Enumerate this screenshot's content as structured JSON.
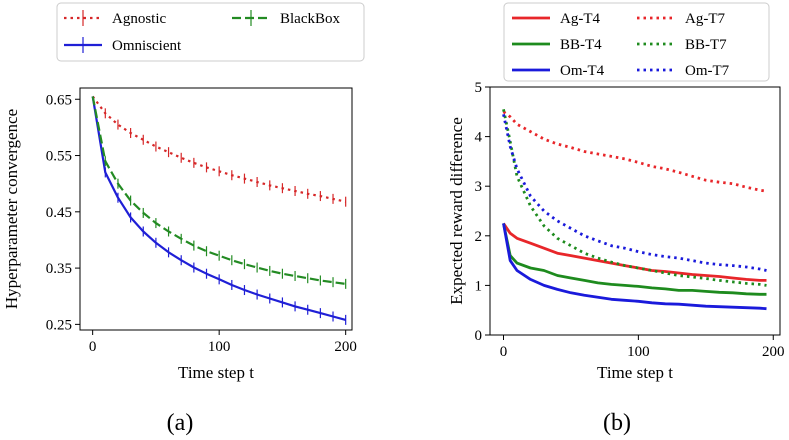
{
  "chart_data": [
    {
      "type": "line",
      "panel": "(a)",
      "xlabel": "Time step t",
      "ylabel": "Hyperparameter convergence",
      "xlim": [
        -10,
        205
      ],
      "ylim": [
        0.24,
        0.67
      ],
      "xticks": [
        0,
        100,
        200
      ],
      "yticks": [
        0.25,
        0.35,
        0.45,
        0.55,
        0.65
      ],
      "ytick_labels": [
        "0.25",
        "0.35",
        "0.45",
        "0.55",
        "0.65"
      ],
      "legend_position": "top, outside",
      "grid": false,
      "error_bars": true,
      "series": [
        {
          "name": "Agnostic",
          "color": "#d62728",
          "style": "dotted",
          "x": [
            0,
            10,
            20,
            30,
            40,
            50,
            60,
            70,
            80,
            90,
            100,
            110,
            120,
            130,
            140,
            150,
            160,
            170,
            180,
            190,
            200
          ],
          "y": [
            0.655,
            0.625,
            0.605,
            0.59,
            0.578,
            0.566,
            0.556,
            0.546,
            0.537,
            0.529,
            0.522,
            0.515,
            0.509,
            0.503,
            0.497,
            0.492,
            0.487,
            0.482,
            0.478,
            0.473,
            0.468
          ]
        },
        {
          "name": "Omniscient",
          "color": "#1f1fd6",
          "style": "solid",
          "x": [
            0,
            10,
            20,
            30,
            40,
            50,
            60,
            70,
            80,
            90,
            100,
            110,
            120,
            130,
            140,
            150,
            160,
            170,
            180,
            190,
            200
          ],
          "y": [
            0.655,
            0.52,
            0.475,
            0.44,
            0.415,
            0.395,
            0.378,
            0.364,
            0.351,
            0.34,
            0.33,
            0.32,
            0.311,
            0.303,
            0.296,
            0.289,
            0.282,
            0.276,
            0.27,
            0.264,
            0.258
          ]
        },
        {
          "name": "BlackBox",
          "color": "#238b23",
          "style": "dashed",
          "x": [
            0,
            10,
            20,
            30,
            40,
            50,
            60,
            70,
            80,
            90,
            100,
            110,
            120,
            130,
            140,
            150,
            160,
            170,
            180,
            190,
            200
          ],
          "y": [
            0.655,
            0.54,
            0.5,
            0.47,
            0.448,
            0.43,
            0.415,
            0.402,
            0.39,
            0.38,
            0.372,
            0.364,
            0.357,
            0.351,
            0.345,
            0.34,
            0.336,
            0.332,
            0.328,
            0.325,
            0.322
          ]
        }
      ]
    },
    {
      "type": "line",
      "panel": "(b)",
      "xlabel": "Time step t",
      "ylabel": "Expected reward difference",
      "xlim": [
        -10,
        205
      ],
      "ylim": [
        0,
        5
      ],
      "xticks": [
        0,
        100,
        200
      ],
      "yticks": [
        0,
        1,
        2,
        3,
        4,
        5
      ],
      "ytick_labels": [
        "0",
        "1",
        "2",
        "3",
        "4",
        "5"
      ],
      "legend_position": "top, outside",
      "grid": false,
      "series": [
        {
          "name": "Ag-T4",
          "color": "#e8262a",
          "style": "solid",
          "x": [
            0,
            5,
            10,
            20,
            30,
            40,
            50,
            60,
            70,
            80,
            90,
            100,
            110,
            120,
            130,
            140,
            150,
            160,
            170,
            180,
            190,
            195
          ],
          "y": [
            2.25,
            2.05,
            1.95,
            1.85,
            1.75,
            1.65,
            1.6,
            1.55,
            1.5,
            1.45,
            1.4,
            1.35,
            1.3,
            1.28,
            1.25,
            1.22,
            1.2,
            1.18,
            1.15,
            1.12,
            1.1,
            1.1
          ]
        },
        {
          "name": "BB-T4",
          "color": "#1e8b1e",
          "style": "solid",
          "x": [
            0,
            5,
            10,
            20,
            30,
            40,
            50,
            60,
            70,
            80,
            90,
            100,
            110,
            120,
            130,
            140,
            150,
            160,
            170,
            180,
            190,
            195
          ],
          "y": [
            2.25,
            1.6,
            1.45,
            1.35,
            1.3,
            1.2,
            1.15,
            1.1,
            1.05,
            1.02,
            1.0,
            0.98,
            0.95,
            0.93,
            0.9,
            0.9,
            0.88,
            0.86,
            0.85,
            0.83,
            0.82,
            0.82
          ]
        },
        {
          "name": "Om-T4",
          "color": "#1a1adb",
          "style": "solid",
          "x": [
            0,
            5,
            10,
            20,
            30,
            40,
            50,
            60,
            70,
            80,
            90,
            100,
            110,
            120,
            130,
            140,
            150,
            160,
            170,
            180,
            190,
            195
          ],
          "y": [
            2.25,
            1.5,
            1.3,
            1.12,
            1.0,
            0.92,
            0.85,
            0.8,
            0.76,
            0.72,
            0.7,
            0.68,
            0.65,
            0.63,
            0.62,
            0.6,
            0.58,
            0.57,
            0.56,
            0.55,
            0.54,
            0.53
          ]
        },
        {
          "name": "Ag-T7",
          "color": "#e8262a",
          "style": "dotted",
          "x": [
            0,
            5,
            10,
            20,
            30,
            40,
            50,
            60,
            70,
            80,
            90,
            100,
            110,
            120,
            130,
            140,
            150,
            160,
            170,
            180,
            190,
            195
          ],
          "y": [
            4.5,
            4.4,
            4.25,
            4.1,
            3.95,
            3.85,
            3.78,
            3.7,
            3.65,
            3.6,
            3.55,
            3.48,
            3.4,
            3.35,
            3.28,
            3.2,
            3.12,
            3.08,
            3.05,
            2.98,
            2.92,
            2.9
          ]
        },
        {
          "name": "BB-T7",
          "color": "#1e8b1e",
          "style": "dotted",
          "x": [
            0,
            5,
            10,
            20,
            30,
            40,
            50,
            60,
            70,
            80,
            90,
            100,
            110,
            120,
            130,
            140,
            150,
            160,
            170,
            180,
            190,
            195
          ],
          "y": [
            4.55,
            3.9,
            3.2,
            2.6,
            2.2,
            1.95,
            1.8,
            1.65,
            1.55,
            1.47,
            1.4,
            1.35,
            1.3,
            1.25,
            1.2,
            1.17,
            1.14,
            1.1,
            1.07,
            1.04,
            1.02,
            1.0
          ]
        },
        {
          "name": "Om-T7",
          "color": "#1a1adb",
          "style": "dotted",
          "x": [
            0,
            5,
            10,
            20,
            30,
            40,
            50,
            60,
            70,
            80,
            90,
            100,
            110,
            120,
            130,
            140,
            150,
            160,
            170,
            180,
            190,
            195
          ],
          "y": [
            4.45,
            3.8,
            3.35,
            2.8,
            2.5,
            2.3,
            2.15,
            2.0,
            1.9,
            1.8,
            1.75,
            1.68,
            1.62,
            1.58,
            1.55,
            1.5,
            1.45,
            1.42,
            1.4,
            1.37,
            1.33,
            1.3
          ]
        }
      ]
    }
  ]
}
